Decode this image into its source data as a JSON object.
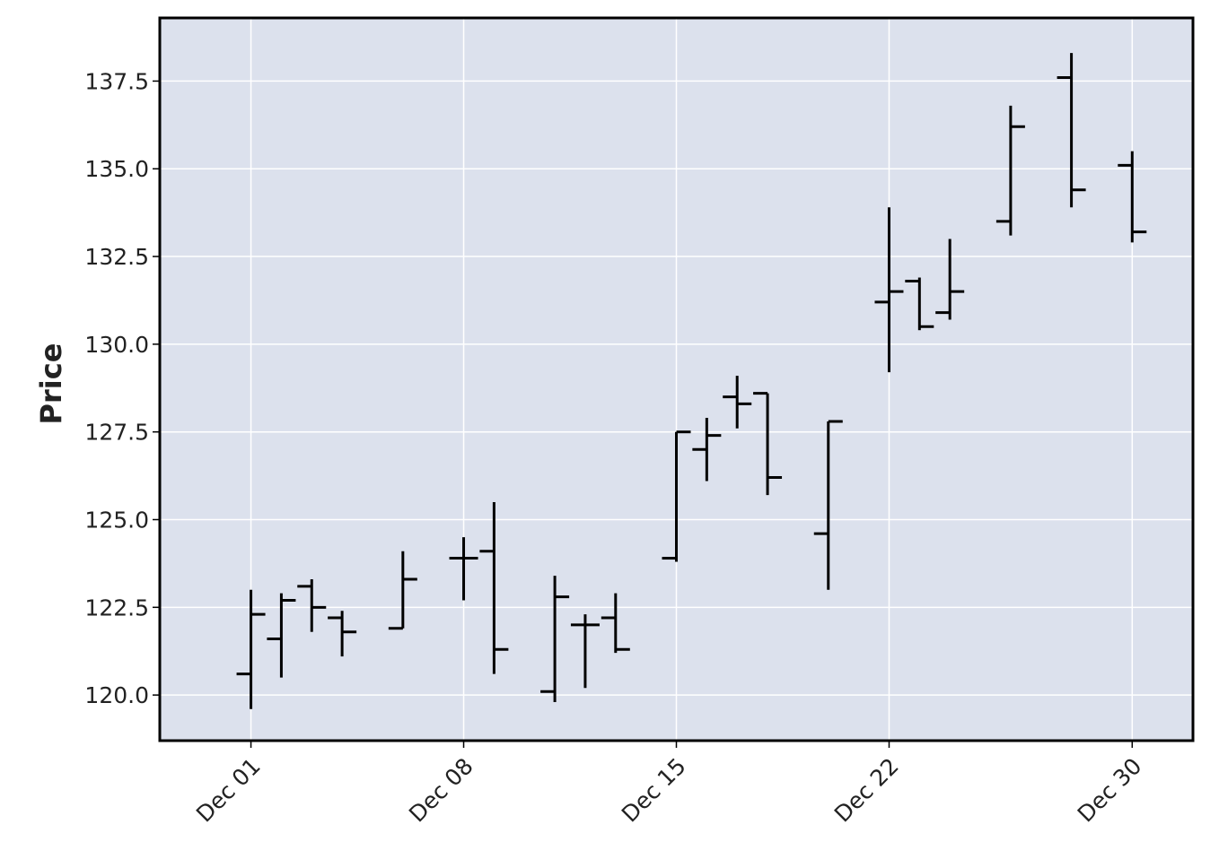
{
  "chart_data": {
    "type": "ohlc",
    "ylabel": "Price",
    "xlabel": "",
    "title": "",
    "ylim": [
      118.7,
      139.3
    ],
    "xlim": [
      "2020-11-28",
      "2021-01-01"
    ],
    "grid": true,
    "legend": "none",
    "x_ticks": [
      {
        "date": "2020-12-01",
        "label": "Dec 01"
      },
      {
        "date": "2020-12-08",
        "label": "Dec 08"
      },
      {
        "date": "2020-12-15",
        "label": "Dec 15"
      },
      {
        "date": "2020-12-22",
        "label": "Dec 22"
      },
      {
        "date": "2020-12-30",
        "label": "Dec 30"
      }
    ],
    "y_ticks": [
      {
        "value": 120.0,
        "label": "120.0"
      },
      {
        "value": 122.5,
        "label": "122.5"
      },
      {
        "value": 125.0,
        "label": "125.0"
      },
      {
        "value": 127.5,
        "label": "127.5"
      },
      {
        "value": 130.0,
        "label": "130.0"
      },
      {
        "value": 132.5,
        "label": "132.5"
      },
      {
        "value": 135.0,
        "label": "135.0"
      },
      {
        "value": 137.5,
        "label": "137.5"
      }
    ],
    "bars": [
      {
        "date": "2020-12-01",
        "open": 120.6,
        "high": 123.0,
        "low": 119.6,
        "close": 122.3
      },
      {
        "date": "2020-12-02",
        "open": 121.6,
        "high": 122.9,
        "low": 120.5,
        "close": 122.7
      },
      {
        "date": "2020-12-03",
        "open": 123.1,
        "high": 123.3,
        "low": 121.8,
        "close": 122.5
      },
      {
        "date": "2020-12-04",
        "open": 122.2,
        "high": 122.4,
        "low": 121.1,
        "close": 121.8
      },
      {
        "date": "2020-12-06",
        "open": 121.9,
        "high": 124.1,
        "low": 121.9,
        "close": 123.3
      },
      {
        "date": "2020-12-08",
        "open": 123.9,
        "high": 124.5,
        "low": 122.7,
        "close": 123.9
      },
      {
        "date": "2020-12-09",
        "open": 124.1,
        "high": 125.5,
        "low": 120.6,
        "close": 121.3
      },
      {
        "date": "2020-12-11",
        "open": 120.1,
        "high": 123.4,
        "low": 119.8,
        "close": 122.8
      },
      {
        "date": "2020-12-12",
        "open": 122.0,
        "high": 122.3,
        "low": 120.2,
        "close": 122.0
      },
      {
        "date": "2020-12-13",
        "open": 122.2,
        "high": 122.9,
        "low": 121.2,
        "close": 121.3
      },
      {
        "date": "2020-12-15",
        "open": 123.9,
        "high": 127.5,
        "low": 123.8,
        "close": 127.5
      },
      {
        "date": "2020-12-16",
        "open": 127.0,
        "high": 127.9,
        "low": 126.1,
        "close": 127.4
      },
      {
        "date": "2020-12-17",
        "open": 128.5,
        "high": 129.1,
        "low": 127.6,
        "close": 128.3
      },
      {
        "date": "2020-12-18",
        "open": 128.6,
        "high": 128.6,
        "low": 125.7,
        "close": 126.2
      },
      {
        "date": "2020-12-20",
        "open": 124.6,
        "high": 127.8,
        "low": 123.0,
        "close": 127.8
      },
      {
        "date": "2020-12-22",
        "open": 131.2,
        "high": 133.9,
        "low": 129.2,
        "close": 131.5
      },
      {
        "date": "2020-12-23",
        "open": 131.8,
        "high": 131.9,
        "low": 130.4,
        "close": 130.5
      },
      {
        "date": "2020-12-24",
        "open": 130.9,
        "high": 133.0,
        "low": 130.7,
        "close": 131.5
      },
      {
        "date": "2020-12-26",
        "open": 133.5,
        "high": 136.8,
        "low": 133.1,
        "close": 136.2
      },
      {
        "date": "2020-12-28",
        "open": 137.6,
        "high": 138.3,
        "low": 133.9,
        "close": 134.4
      },
      {
        "date": "2020-12-30",
        "open": 135.1,
        "high": 135.5,
        "low": 132.9,
        "close": 133.2
      }
    ],
    "colors": {
      "plot_background": "#dce1ed",
      "grid": "#ffffff",
      "bars": "#000000",
      "frame": "#000000"
    }
  }
}
